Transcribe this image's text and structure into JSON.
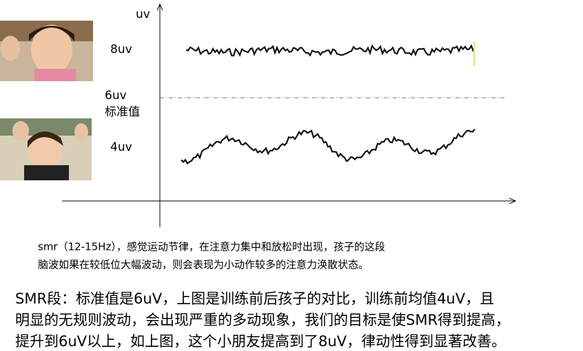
{
  "axis": {
    "unit": "uv"
  },
  "levels": {
    "high": "8uv",
    "standard_value": "6uv",
    "standard_label": "标准值",
    "low": "4uv"
  },
  "caption": {
    "lines": [
      "smr（12-15Hz），感觉运动节律，在注意力集中和放松时出现，孩子的这段",
      "脑波如果在较低位大幅波动，则会表现为小动作较多的注意力涣散状态。"
    ]
  },
  "summary": {
    "lines": [
      "SMR段：标准值是6uV，上图是训练前后孩子的对比，训练前均值4uV，且",
      "明显的无规则波动，会出现严重的多动现象，我们的目标是使SMR得到提高，",
      "提升到6uV以上，如上图，这个小朋友提高到了8uV，律动性得到显著改善。"
    ]
  }
}
